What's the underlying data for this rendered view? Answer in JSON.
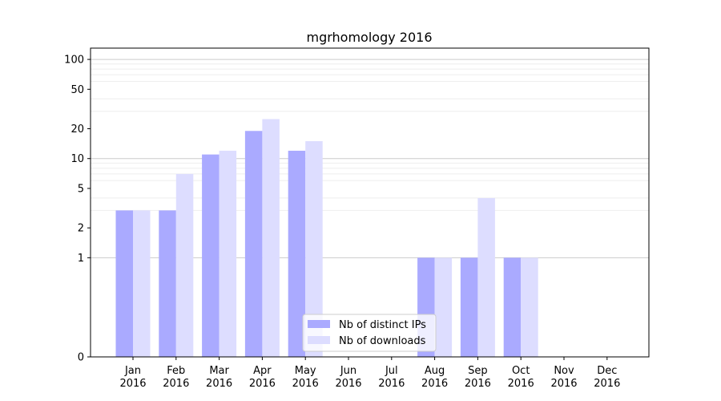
{
  "chart_data": {
    "type": "bar",
    "title": "mgrhomology 2016",
    "xlabel": "",
    "ylabel": "",
    "yscale": "symlog",
    "ylim": [
      0,
      130
    ],
    "yticks": [
      0,
      1,
      2,
      5,
      10,
      20,
      50,
      100
    ],
    "categories": [
      "Jan\n2016",
      "Feb\n2016",
      "Mar\n2016",
      "Apr\n2016",
      "May\n2016",
      "Jun\n2016",
      "Jul\n2016",
      "Aug\n2016",
      "Sep\n2016",
      "Oct\n2016",
      "Nov\n2016",
      "Dec\n2016"
    ],
    "series": [
      {
        "name": "Nb of distinct IPs",
        "color": "#aaaaff",
        "values": [
          3,
          3,
          11,
          19,
          12,
          0,
          0,
          1,
          1,
          1,
          0,
          0
        ]
      },
      {
        "name": "Nb of downloads",
        "color": "#ddddff",
        "values": [
          3,
          7,
          12,
          25,
          15,
          0,
          0,
          1,
          4,
          1,
          0,
          0
        ]
      }
    ],
    "grid": {
      "major_color": "#cccccc",
      "minor_color": "#eeeeee"
    },
    "legend": "lower-center"
  }
}
